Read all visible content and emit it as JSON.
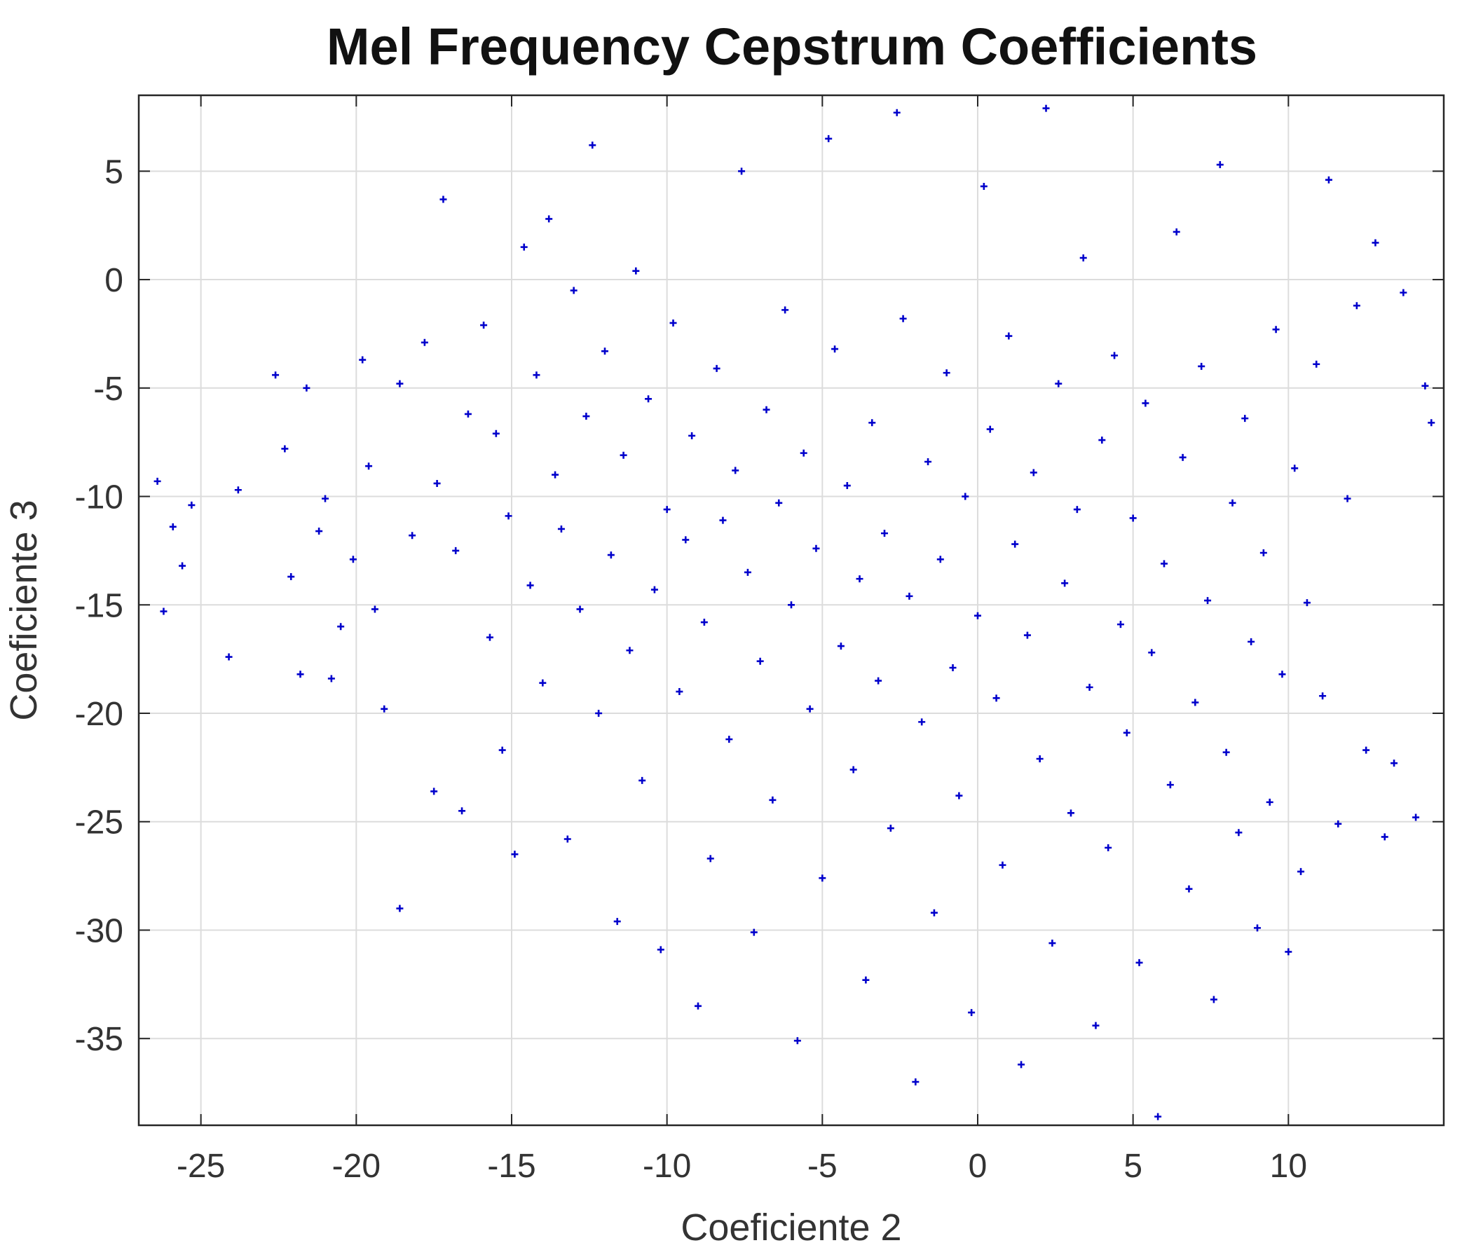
{
  "chart_data": {
    "type": "scatter",
    "title": "Mel Frequency Cepstrum Coefficients",
    "xlabel": "Coeficiente 2",
    "ylabel": "Coeficiente 3",
    "xlim": [
      -27,
      15
    ],
    "ylim": [
      -39,
      8.5
    ],
    "xticks": [
      -25,
      -20,
      -15,
      -10,
      -5,
      0,
      5,
      10
    ],
    "yticks": [
      5,
      0,
      -5,
      -10,
      -15,
      -20,
      -25,
      -30,
      -35
    ],
    "grid": true,
    "marker": "+",
    "series": [
      {
        "color": "#0000cc",
        "points": [
          [
            -26.4,
            -9.3
          ],
          [
            -26.2,
            -15.3
          ],
          [
            -25.9,
            -11.4
          ],
          [
            -25.6,
            -13.2
          ],
          [
            -25.3,
            -10.4
          ],
          [
            -24.1,
            -17.4
          ],
          [
            -23.8,
            -9.7
          ],
          [
            -22.6,
            -4.4
          ],
          [
            -22.3,
            -7.8
          ],
          [
            -22.1,
            -13.7
          ],
          [
            -21.8,
            -18.2
          ],
          [
            -21.6,
            -5.0
          ],
          [
            -21.2,
            -11.6
          ],
          [
            -21.0,
            -10.1
          ],
          [
            -20.8,
            -18.4
          ],
          [
            -20.5,
            -16.0
          ],
          [
            -20.1,
            -12.9
          ],
          [
            -19.8,
            -3.7
          ],
          [
            -19.6,
            -8.6
          ],
          [
            -19.4,
            -15.2
          ],
          [
            -19.1,
            -19.8
          ],
          [
            -18.6,
            -4.8
          ],
          [
            -18.2,
            -11.8
          ],
          [
            -18.6,
            -29.0
          ],
          [
            -17.8,
            -2.9
          ],
          [
            -17.4,
            -9.4
          ],
          [
            -17.2,
            3.7
          ],
          [
            -17.5,
            -23.6
          ],
          [
            -16.8,
            -12.5
          ],
          [
            -16.6,
            -24.5
          ],
          [
            -16.4,
            -6.2
          ],
          [
            -15.9,
            -2.1
          ],
          [
            -15.7,
            -16.5
          ],
          [
            -15.5,
            -7.1
          ],
          [
            -15.3,
            -21.7
          ],
          [
            -15.1,
            -10.9
          ],
          [
            -14.9,
            -26.5
          ],
          [
            -14.6,
            1.5
          ],
          [
            -14.4,
            -14.1
          ],
          [
            -14.2,
            -4.4
          ],
          [
            -14.0,
            -18.6
          ],
          [
            -13.8,
            2.8
          ],
          [
            -13.6,
            -9.0
          ],
          [
            -13.4,
            -11.5
          ],
          [
            -13.2,
            -25.8
          ],
          [
            -13.0,
            -0.5
          ],
          [
            -12.8,
            -15.2
          ],
          [
            -12.6,
            -6.3
          ],
          [
            -12.4,
            6.2
          ],
          [
            -12.2,
            -20.0
          ],
          [
            -12.0,
            -3.3
          ],
          [
            -11.8,
            -12.7
          ],
          [
            -11.6,
            -29.6
          ],
          [
            -11.4,
            -8.1
          ],
          [
            -11.2,
            -17.1
          ],
          [
            -11.0,
            0.4
          ],
          [
            -10.8,
            -23.1
          ],
          [
            -10.6,
            -5.5
          ],
          [
            -10.4,
            -14.3
          ],
          [
            -10.2,
            -30.9
          ],
          [
            -10.0,
            -10.6
          ],
          [
            -9.8,
            -2.0
          ],
          [
            -9.6,
            -19.0
          ],
          [
            -9.4,
            -12.0
          ],
          [
            -9.2,
            -7.2
          ],
          [
            -9.0,
            -33.5
          ],
          [
            -8.8,
            -15.8
          ],
          [
            -8.6,
            -26.7
          ],
          [
            -8.4,
            -4.1
          ],
          [
            -8.2,
            -11.1
          ],
          [
            -8.0,
            -21.2
          ],
          [
            -7.8,
            -8.8
          ],
          [
            -7.6,
            5.0
          ],
          [
            -7.4,
            -13.5
          ],
          [
            -7.2,
            -30.1
          ],
          [
            -7.0,
            -17.6
          ],
          [
            -6.8,
            -6.0
          ],
          [
            -6.6,
            -24.0
          ],
          [
            -6.4,
            -10.3
          ],
          [
            -6.2,
            -1.4
          ],
          [
            -6.0,
            -15.0
          ],
          [
            -5.8,
            -35.1
          ],
          [
            -5.6,
            -8.0
          ],
          [
            -5.4,
            -19.8
          ],
          [
            -5.2,
            -12.4
          ],
          [
            -5.0,
            -27.6
          ],
          [
            -4.8,
            6.5
          ],
          [
            -4.6,
            -3.2
          ],
          [
            -4.4,
            -16.9
          ],
          [
            -4.2,
            -9.5
          ],
          [
            -4.0,
            -22.6
          ],
          [
            -3.8,
            -13.8
          ],
          [
            -3.6,
            -32.3
          ],
          [
            -3.4,
            -6.6
          ],
          [
            -3.2,
            -18.5
          ],
          [
            -3.0,
            -11.7
          ],
          [
            -2.8,
            -25.3
          ],
          [
            -2.6,
            7.7
          ],
          [
            -2.4,
            -1.8
          ],
          [
            -2.2,
            -14.6
          ],
          [
            -2.0,
            -37.0
          ],
          [
            -1.8,
            -20.4
          ],
          [
            -1.6,
            -8.4
          ],
          [
            -1.4,
            -29.2
          ],
          [
            -1.2,
            -12.9
          ],
          [
            -1.0,
            -4.3
          ],
          [
            -0.8,
            -17.9
          ],
          [
            -0.6,
            -23.8
          ],
          [
            -0.4,
            -10.0
          ],
          [
            -0.2,
            -33.8
          ],
          [
            0.0,
            -15.5
          ],
          [
            0.2,
            4.3
          ],
          [
            0.4,
            -6.9
          ],
          [
            0.6,
            -19.3
          ],
          [
            0.8,
            -27.0
          ],
          [
            1.0,
            -2.6
          ],
          [
            1.2,
            -12.2
          ],
          [
            1.4,
            -36.2
          ],
          [
            1.6,
            -16.4
          ],
          [
            1.8,
            -8.9
          ],
          [
            2.0,
            -22.1
          ],
          [
            2.2,
            7.9
          ],
          [
            2.4,
            -30.6
          ],
          [
            2.6,
            -4.8
          ],
          [
            2.8,
            -14.0
          ],
          [
            3.0,
            -24.6
          ],
          [
            3.2,
            -10.6
          ],
          [
            3.4,
            1.0
          ],
          [
            3.6,
            -18.8
          ],
          [
            3.8,
            -34.4
          ],
          [
            4.0,
            -7.4
          ],
          [
            4.2,
            -26.2
          ],
          [
            4.4,
            -3.5
          ],
          [
            4.6,
            -15.9
          ],
          [
            4.8,
            -20.9
          ],
          [
            5.0,
            -11.0
          ],
          [
            5.2,
            -31.5
          ],
          [
            5.4,
            -5.7
          ],
          [
            5.6,
            -17.2
          ],
          [
            5.8,
            -38.6
          ],
          [
            6.0,
            -13.1
          ],
          [
            6.2,
            -23.3
          ],
          [
            6.4,
            2.2
          ],
          [
            6.6,
            -8.2
          ],
          [
            6.8,
            -28.1
          ],
          [
            7.0,
            -19.5
          ],
          [
            7.2,
            -4.0
          ],
          [
            7.4,
            -14.8
          ],
          [
            7.6,
            -33.2
          ],
          [
            7.8,
            5.3
          ],
          [
            8.0,
            -21.8
          ],
          [
            8.2,
            -10.3
          ],
          [
            8.4,
            -25.5
          ],
          [
            8.6,
            -6.4
          ],
          [
            8.8,
            -16.7
          ],
          [
            9.0,
            -29.9
          ],
          [
            9.2,
            -12.6
          ],
          [
            9.4,
            -24.1
          ],
          [
            9.6,
            -2.3
          ],
          [
            9.8,
            -18.2
          ],
          [
            10.0,
            -31.0
          ],
          [
            10.2,
            -8.7
          ],
          [
            10.4,
            -27.3
          ],
          [
            10.6,
            -14.9
          ],
          [
            10.9,
            -3.9
          ],
          [
            11.1,
            -19.2
          ],
          [
            11.3,
            4.6
          ],
          [
            11.6,
            -25.1
          ],
          [
            11.9,
            -10.1
          ],
          [
            12.2,
            -1.2
          ],
          [
            12.5,
            -21.7
          ],
          [
            12.8,
            1.7
          ],
          [
            13.1,
            -25.7
          ],
          [
            13.4,
            -22.3
          ],
          [
            13.7,
            -0.6
          ],
          [
            14.1,
            -24.8
          ],
          [
            14.4,
            -4.9
          ],
          [
            14.6,
            -6.6
          ]
        ]
      }
    ]
  }
}
